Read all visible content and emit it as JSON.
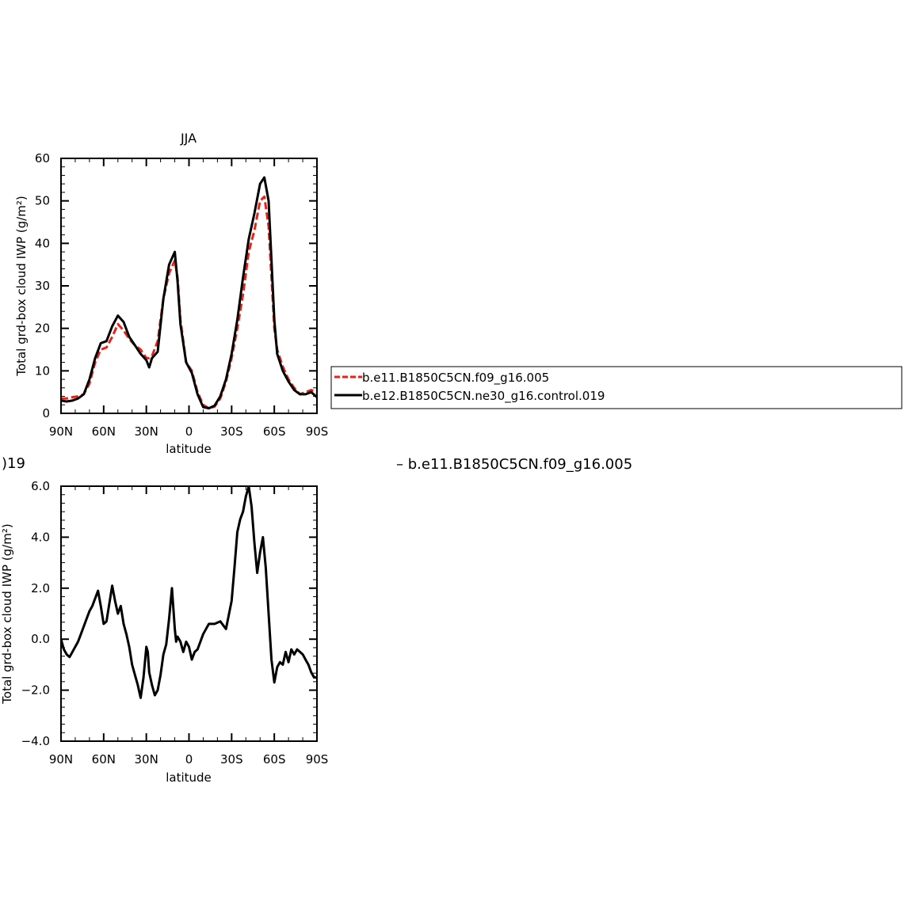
{
  "chart_data": [
    {
      "type": "line",
      "title": "JJA",
      "xlabel": "latitude",
      "ylabel": "Total grd-box cloud IWP (g/m²)",
      "xlim": [
        90,
        -90
      ],
      "ylim": [
        0,
        60
      ],
      "x_ticks": [
        {
          "value": 90,
          "label": "90N"
        },
        {
          "value": 60,
          "label": "60N"
        },
        {
          "value": 30,
          "label": "30N"
        },
        {
          "value": 0,
          "label": "0"
        },
        {
          "value": -30,
          "label": "30S"
        },
        {
          "value": -60,
          "label": "60S"
        },
        {
          "value": -90,
          "label": "90S"
        }
      ],
      "y_ticks": [
        {
          "value": 0,
          "label": "0"
        },
        {
          "value": 10,
          "label": "10"
        },
        {
          "value": 20,
          "label": "20"
        },
        {
          "value": 30,
          "label": "30"
        },
        {
          "value": 40,
          "label": "40"
        },
        {
          "value": 50,
          "label": "50"
        },
        {
          "value": 60,
          "label": "60"
        }
      ],
      "legend_position": "right, outside plot",
      "series": [
        {
          "name": "b.e11.B1850C5CN.f09_g16.005",
          "color": "#e8231a",
          "dash": "dashed",
          "x": [
            90,
            86,
            82,
            78,
            74,
            70,
            66,
            62,
            58,
            54,
            50,
            46,
            42,
            38,
            34,
            30,
            28,
            26,
            22,
            18,
            14,
            10,
            8,
            6,
            2,
            -2,
            -6,
            -10,
            -14,
            -18,
            -22,
            -26,
            -30,
            -34,
            -38,
            -42,
            -46,
            -50,
            -53,
            -56,
            -58,
            -60,
            -62,
            -66,
            -70,
            -74,
            -78,
            -82,
            -86,
            -90
          ],
          "y": [
            3.5,
            3.5,
            3.8,
            4.0,
            4.5,
            7.0,
            12.0,
            15.0,
            15.5,
            18.0,
            21.0,
            19.5,
            17.5,
            16.0,
            15.0,
            13.0,
            13.0,
            13.5,
            17.0,
            27.0,
            33.0,
            36.0,
            32.0,
            22.0,
            12.0,
            10.0,
            5.0,
            2.0,
            1.2,
            1.6,
            3.5,
            7.5,
            13.0,
            20.0,
            28.0,
            38.0,
            43.0,
            50.0,
            51.0,
            44.0,
            32.0,
            20.0,
            15.0,
            11.0,
            8.0,
            6.0,
            4.5,
            5.0,
            5.5,
            4.8
          ]
        },
        {
          "name": "b.e12.B1850C5CN.ne30_g16.control.019",
          "color": "#000000",
          "dash": "solid",
          "x": [
            90,
            86,
            82,
            78,
            74,
            70,
            66,
            62,
            58,
            54,
            50,
            46,
            42,
            38,
            34,
            30,
            28,
            26,
            22,
            18,
            14,
            10,
            8,
            6,
            2,
            -2,
            -6,
            -10,
            -14,
            -18,
            -22,
            -26,
            -30,
            -34,
            -38,
            -42,
            -46,
            -50,
            -53,
            -56,
            -58,
            -60,
            -62,
            -66,
            -70,
            -74,
            -78,
            -82,
            -86,
            -90
          ],
          "y": [
            3.0,
            2.8,
            3.0,
            3.5,
            4.5,
            8.0,
            13.0,
            16.5,
            17.0,
            20.5,
            23.0,
            21.5,
            18.0,
            16.0,
            14.0,
            12.5,
            10.8,
            13.0,
            14.5,
            27.0,
            35.0,
            38.0,
            31.0,
            21.0,
            12.0,
            9.5,
            4.5,
            1.5,
            1.2,
            1.8,
            4.0,
            8.0,
            14.0,
            22.0,
            32.0,
            41.0,
            47.0,
            54.0,
            55.5,
            50.0,
            36.0,
            22.0,
            14.0,
            10.0,
            7.5,
            5.5,
            4.5,
            4.5,
            5.0,
            3.8
          ]
        }
      ]
    },
    {
      "type": "line",
      "title": "",
      "xlabel": "latitude",
      "ylabel": "Total grd-box cloud IWP (g/m²)",
      "header_left": ")19",
      "header_right": "– b.e11.B1850C5CN.f09_g16.005",
      "xlim": [
        90,
        -90
      ],
      "ylim": [
        -4.0,
        6.0
      ],
      "x_ticks": [
        {
          "value": 90,
          "label": "90N"
        },
        {
          "value": 60,
          "label": "60N"
        },
        {
          "value": 30,
          "label": "30N"
        },
        {
          "value": 0,
          "label": "0"
        },
        {
          "value": -30,
          "label": "30S"
        },
        {
          "value": -60,
          "label": "60S"
        },
        {
          "value": -90,
          "label": "90S"
        }
      ],
      "y_ticks": [
        {
          "value": -4.0,
          "label": "−4.0"
        },
        {
          "value": -2.0,
          "label": "−2.0"
        },
        {
          "value": 0.0,
          "label": "0.0"
        },
        {
          "value": 2.0,
          "label": "2.0"
        },
        {
          "value": 4.0,
          "label": "4.0"
        },
        {
          "value": 6.0,
          "label": "6.0"
        }
      ],
      "series": [
        {
          "color": "#000000",
          "dash": "solid",
          "x": [
            90,
            88,
            86,
            84,
            82,
            80,
            78,
            76,
            74,
            72,
            70,
            68,
            66,
            64,
            62,
            60,
            58,
            56,
            54,
            52,
            50,
            48,
            46,
            44,
            42,
            40,
            38,
            36,
            34,
            32,
            30,
            29,
            28,
            26,
            24,
            22,
            20,
            18,
            16,
            14,
            12,
            10,
            9,
            8,
            6,
            4,
            2,
            0,
            -2,
            -4,
            -6,
            -8,
            -10,
            -12,
            -14,
            -18,
            -22,
            -26,
            -30,
            -32,
            -34,
            -36,
            -38,
            -40,
            -42,
            -44,
            -46,
            -48,
            -50,
            -52,
            -54,
            -56,
            -58,
            -60,
            -62,
            -64,
            -66,
            -68,
            -70,
            -72,
            -74,
            -76,
            -78,
            -80,
            -82,
            -84,
            -86,
            -88,
            -90
          ],
          "y": [
            0.0,
            -0.4,
            -0.6,
            -0.7,
            -0.5,
            -0.3,
            -0.1,
            0.2,
            0.5,
            0.8,
            1.1,
            1.3,
            1.6,
            1.9,
            1.3,
            0.6,
            0.7,
            1.4,
            2.1,
            1.5,
            1.0,
            1.3,
            0.6,
            0.2,
            -0.3,
            -1.0,
            -1.4,
            -1.8,
            -2.3,
            -1.5,
            -0.3,
            -0.5,
            -1.3,
            -1.8,
            -2.2,
            -2.0,
            -1.4,
            -0.6,
            -0.2,
            0.8,
            2.0,
            0.4,
            -0.1,
            0.1,
            -0.1,
            -0.5,
            -0.1,
            -0.3,
            -0.8,
            -0.5,
            -0.4,
            -0.1,
            0.2,
            0.4,
            0.6,
            0.6,
            0.7,
            0.4,
            1.5,
            2.8,
            4.2,
            4.7,
            5.0,
            5.6,
            6.0,
            5.2,
            3.8,
            2.6,
            3.4,
            4.0,
            2.8,
            1.0,
            -0.8,
            -1.7,
            -1.1,
            -0.9,
            -1.0,
            -0.5,
            -0.9,
            -0.4,
            -0.6,
            -0.4,
            -0.5,
            -0.6,
            -0.8,
            -1.0,
            -1.3,
            -1.5,
            -1.5
          ]
        }
      ]
    }
  ]
}
